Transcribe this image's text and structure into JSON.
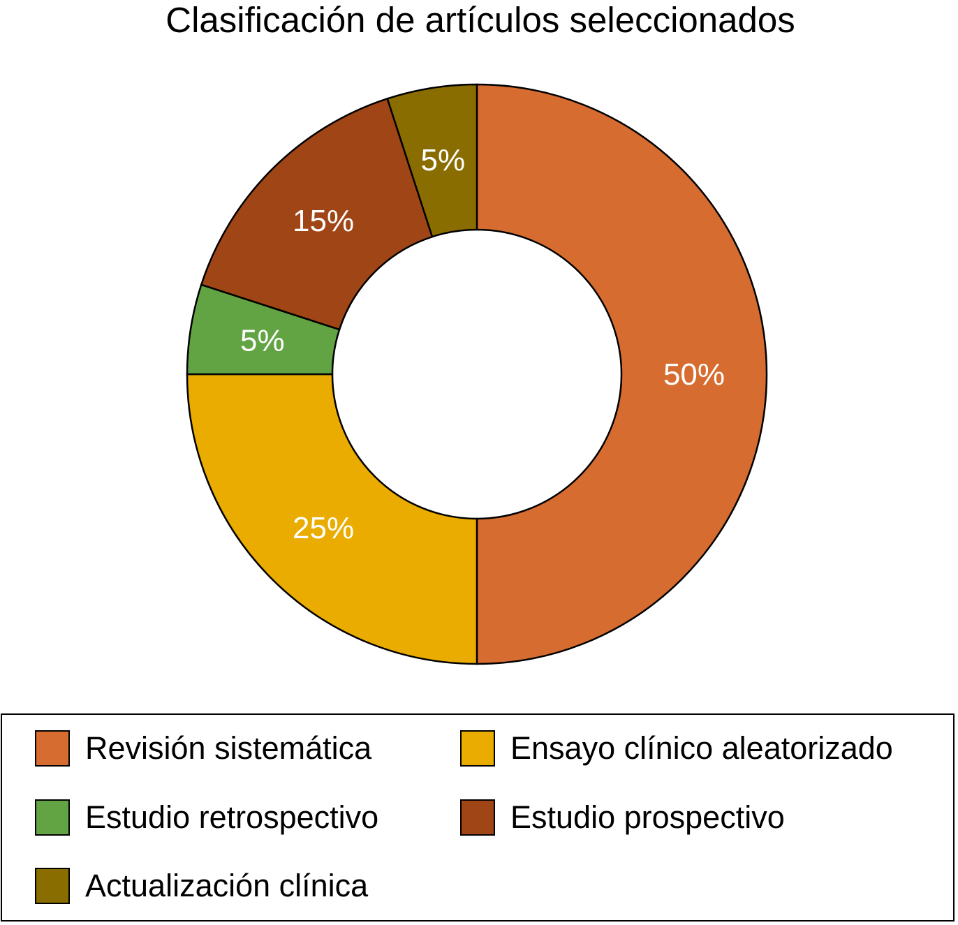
{
  "chart_data": {
    "type": "pie",
    "donut": true,
    "title": "Clasificación de artículos seleccionados",
    "legend_position": "bottom",
    "slices": [
      {
        "name": "Revisión sistemática",
        "value": 50,
        "label": "50%",
        "color": "#D66C30"
      },
      {
        "name": "Ensayo clínico aleatorizado",
        "value": 25,
        "label": "25%",
        "color": "#EAAC00"
      },
      {
        "name": "Estudio retrospectivo",
        "value": 5,
        "label": "5%",
        "color": "#62A343"
      },
      {
        "name": "Estudio prospectivo",
        "value": 15,
        "label": "15%",
        "color": "#A04516"
      },
      {
        "name": "Actualización clínica",
        "value": 5,
        "label": "5%",
        "color": "#8A6D00"
      }
    ]
  }
}
